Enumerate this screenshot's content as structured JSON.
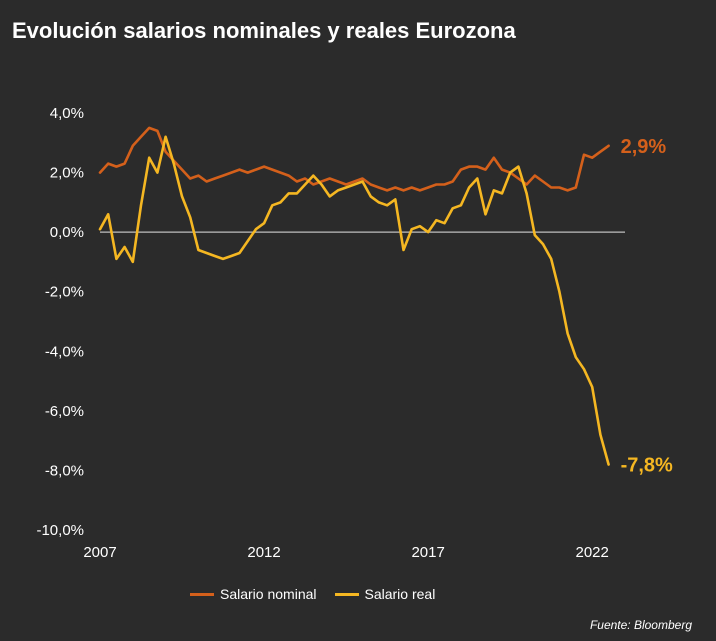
{
  "title": "Evolución salarios nominales y reales Eurozona",
  "source": "Fuente: Bloomberg",
  "colors": {
    "nominal": "#d4601b",
    "real": "#f5b722",
    "zero_line": "#bfbfbf",
    "background": "#2b2b2b"
  },
  "chart_data": {
    "type": "line",
    "title": "Evolución salarios nominales y reales Eurozona",
    "xlabel": "",
    "ylabel": "",
    "xlim": [
      2007.0,
      2023.0
    ],
    "ylim": [
      -10,
      4
    ],
    "y_ticks": [
      4,
      2,
      0,
      -2,
      -4,
      -6,
      -8,
      -10
    ],
    "y_tick_labels": [
      "4,0%",
      "2,0%",
      "0,0%",
      "-2,0%",
      "-4,0%",
      "-6,0%",
      "-8,0%",
      "-10,0%"
    ],
    "x_ticks": [
      2007,
      2012,
      2017,
      2022
    ],
    "x_tick_labels": [
      "2007",
      "2012",
      "2017",
      "2022"
    ],
    "legend_position": "bottom",
    "series": [
      {
        "name": "Salario nominal",
        "color": "#d4601b",
        "end_label": "2,9%",
        "x": [
          2007.0,
          2007.25,
          2007.5,
          2007.75,
          2008.0,
          2008.25,
          2008.5,
          2008.75,
          2009.0,
          2009.25,
          2009.5,
          2009.75,
          2010.0,
          2010.25,
          2010.5,
          2010.75,
          2011.0,
          2011.25,
          2011.5,
          2011.75,
          2012.0,
          2012.25,
          2012.5,
          2012.75,
          2013.0,
          2013.25,
          2013.5,
          2013.75,
          2014.0,
          2014.25,
          2014.5,
          2014.75,
          2015.0,
          2015.25,
          2015.5,
          2015.75,
          2016.0,
          2016.25,
          2016.5,
          2016.75,
          2017.0,
          2017.25,
          2017.5,
          2017.75,
          2018.0,
          2018.25,
          2018.5,
          2018.75,
          2019.0,
          2019.25,
          2019.5,
          2019.75,
          2020.0,
          2020.25,
          2020.5,
          2020.75,
          2021.0,
          2021.25,
          2021.5,
          2021.75,
          2022.0,
          2022.25,
          2022.5
        ],
        "values": [
          2.0,
          2.3,
          2.2,
          2.3,
          2.9,
          3.2,
          3.5,
          3.4,
          2.7,
          2.4,
          2.1,
          1.8,
          1.9,
          1.7,
          1.8,
          1.9,
          2.0,
          2.1,
          2.0,
          2.1,
          2.2,
          2.1,
          2.0,
          1.9,
          1.7,
          1.8,
          1.6,
          1.7,
          1.8,
          1.7,
          1.6,
          1.7,
          1.8,
          1.6,
          1.5,
          1.4,
          1.5,
          1.4,
          1.5,
          1.4,
          1.5,
          1.6,
          1.6,
          1.7,
          2.1,
          2.2,
          2.2,
          2.1,
          2.5,
          2.1,
          2.0,
          1.8,
          1.6,
          1.9,
          1.7,
          1.5,
          1.5,
          1.4,
          1.5,
          2.6,
          2.5,
          2.7,
          2.9
        ]
      },
      {
        "name": "Salario real",
        "color": "#f5b722",
        "end_label": "-7,8%",
        "x": [
          2007.0,
          2007.25,
          2007.5,
          2007.75,
          2008.0,
          2008.25,
          2008.5,
          2008.75,
          2009.0,
          2009.25,
          2009.5,
          2009.75,
          2010.0,
          2010.25,
          2010.5,
          2010.75,
          2011.0,
          2011.25,
          2011.5,
          2011.75,
          2012.0,
          2012.25,
          2012.5,
          2012.75,
          2013.0,
          2013.25,
          2013.5,
          2013.75,
          2014.0,
          2014.25,
          2014.5,
          2014.75,
          2015.0,
          2015.25,
          2015.5,
          2015.75,
          2016.0,
          2016.25,
          2016.5,
          2016.75,
          2017.0,
          2017.25,
          2017.5,
          2017.75,
          2018.0,
          2018.25,
          2018.5,
          2018.75,
          2019.0,
          2019.25,
          2019.5,
          2019.75,
          2020.0,
          2020.25,
          2020.5,
          2020.75,
          2021.0,
          2021.25,
          2021.5,
          2021.75,
          2022.0,
          2022.25,
          2022.5
        ],
        "values": [
          0.1,
          0.6,
          -0.9,
          -0.5,
          -1.0,
          0.9,
          2.5,
          2.0,
          3.2,
          2.3,
          1.2,
          0.5,
          -0.6,
          -0.7,
          -0.8,
          -0.9,
          -0.8,
          -0.7,
          -0.3,
          0.1,
          0.3,
          0.9,
          1.0,
          1.3,
          1.3,
          1.6,
          1.9,
          1.6,
          1.2,
          1.4,
          1.5,
          1.6,
          1.7,
          1.2,
          1.0,
          0.9,
          1.1,
          -0.6,
          0.1,
          0.2,
          0.0,
          0.4,
          0.3,
          0.8,
          0.9,
          1.5,
          1.8,
          0.6,
          1.4,
          1.3,
          2.0,
          2.2,
          1.3,
          -0.1,
          -0.4,
          -0.9,
          -2.0,
          -3.4,
          -4.2,
          -4.6,
          -5.2,
          -6.8,
          -7.8
        ]
      }
    ]
  }
}
